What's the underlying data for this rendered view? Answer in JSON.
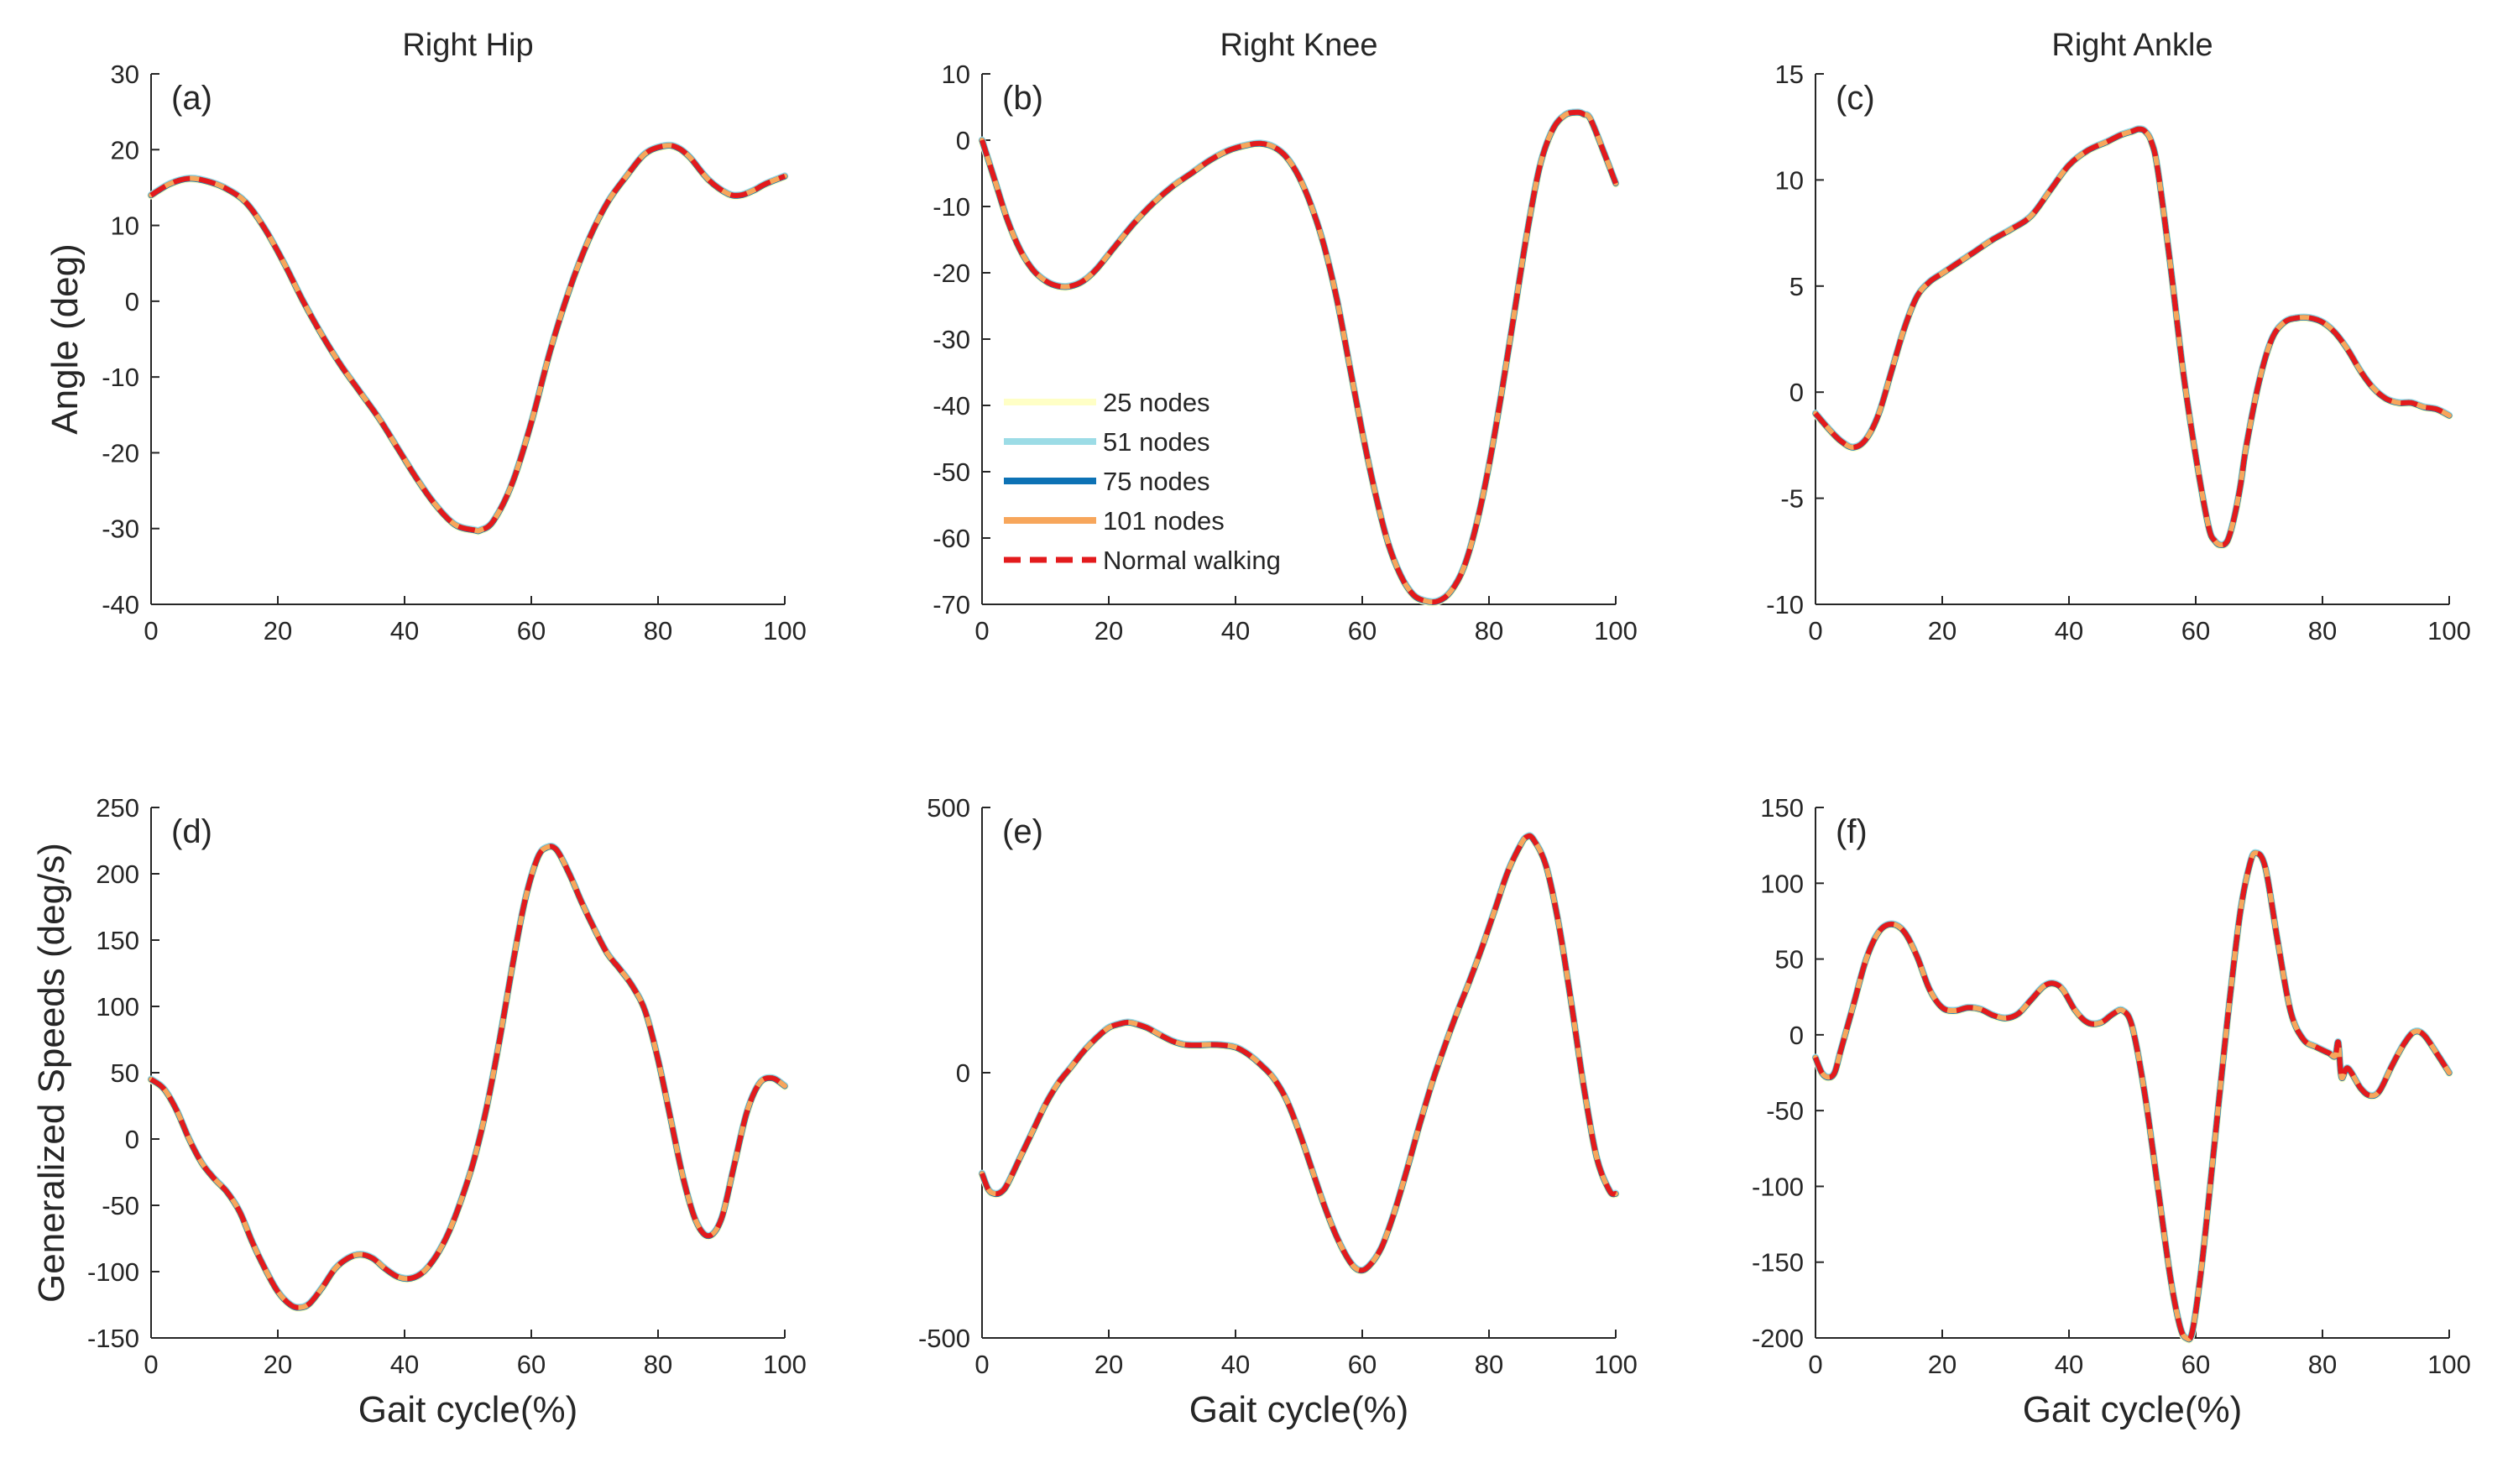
{
  "chart_data": [
    {
      "id": "a",
      "type": "line",
      "panel_label": "(a)",
      "title": "Right Hip",
      "xlabel": "",
      "ylabel": "Angle (deg)",
      "xlim": [
        0,
        100
      ],
      "ylim": [
        -40,
        30
      ],
      "xticks": [
        0,
        20,
        40,
        60,
        80,
        100
      ],
      "yticks": [
        -40,
        -30,
        -20,
        -10,
        0,
        10,
        20,
        30
      ],
      "curve": {
        "x": [
          0,
          3,
          6,
          9,
          12,
          15,
          18,
          21,
          24,
          27,
          30,
          33,
          36,
          39,
          42,
          45,
          48,
          51,
          52,
          54,
          57,
          60,
          63,
          66,
          69,
          72,
          75,
          78,
          81,
          83,
          85,
          88,
          91,
          93,
          95,
          97,
          100
        ],
        "y": [
          14,
          15.5,
          16.2,
          15.8,
          14.8,
          13,
          9.5,
          5,
          0,
          -4.5,
          -8.5,
          -12,
          -15.5,
          -19.5,
          -23.5,
          -27,
          -29.5,
          -30.2,
          -30.2,
          -29,
          -24,
          -16,
          -6.5,
          1.5,
          8,
          13,
          16.5,
          19.5,
          20.5,
          20.3,
          19,
          16,
          14.2,
          14,
          14.6,
          15.5,
          16.5
        ]
      },
      "series": [
        {
          "name": "25 nodes",
          "color": "#ffffc6"
        },
        {
          "name": "51 nodes",
          "color": "#9cdce6"
        },
        {
          "name": "75 nodes",
          "color": "#0d72b5"
        },
        {
          "name": "101 nodes",
          "color": "#f7a65b"
        },
        {
          "name": "Normal walking",
          "color": "#e31a1c"
        }
      ]
    },
    {
      "id": "b",
      "type": "line",
      "panel_label": "(b)",
      "title": "Right Knee",
      "xlabel": "",
      "ylabel": "",
      "xlim": [
        0,
        100
      ],
      "ylim": [
        -70,
        10
      ],
      "xticks": [
        0,
        20,
        40,
        60,
        80,
        100
      ],
      "yticks": [
        -70,
        -60,
        -50,
        -40,
        -30,
        -20,
        -10,
        0,
        10
      ],
      "curve": {
        "x": [
          0,
          2,
          4,
          6,
          8,
          10,
          12,
          14,
          16,
          18,
          21,
          24,
          27,
          30,
          33,
          36,
          39,
          42,
          44,
          46,
          48,
          50,
          52,
          54,
          56,
          58,
          60,
          62,
          64,
          66,
          68,
          70,
          72,
          74,
          76,
          78,
          80,
          82,
          84,
          86,
          88,
          90,
          92,
          94,
          95,
          96,
          98,
          100
        ],
        "y": [
          0,
          -6,
          -12,
          -16.5,
          -19.5,
          -21.2,
          -22,
          -22,
          -21.2,
          -19.5,
          -16,
          -12.5,
          -9.5,
          -7,
          -5,
          -3,
          -1.5,
          -0.7,
          -0.5,
          -1,
          -2.5,
          -5.5,
          -10,
          -16,
          -24,
          -34,
          -44,
          -53,
          -60.5,
          -65.5,
          -68.5,
          -69.5,
          -69.5,
          -68,
          -64.5,
          -58,
          -49,
          -38,
          -26,
          -14,
          -4,
          1.5,
          3.8,
          4.2,
          3.9,
          3.2,
          -1.5,
          -6.5
        ]
      },
      "series": [
        {
          "name": "25 nodes",
          "color": "#ffffc6"
        },
        {
          "name": "51 nodes",
          "color": "#9cdce6"
        },
        {
          "name": "75 nodes",
          "color": "#0d72b5"
        },
        {
          "name": "101 nodes",
          "color": "#f7a65b"
        },
        {
          "name": "Normal walking",
          "color": "#e31a1c"
        }
      ],
      "legend": {
        "entries": [
          "25 nodes",
          "51 nodes",
          "75 nodes",
          "101 nodes",
          "Normal walking"
        ],
        "location": "left"
      }
    },
    {
      "id": "c",
      "type": "line",
      "panel_label": "(c)",
      "title": "Right Ankle",
      "xlabel": "",
      "ylabel": "",
      "xlim": [
        0,
        100
      ],
      "ylim": [
        -10,
        15
      ],
      "xticks": [
        0,
        20,
        40,
        60,
        80,
        100
      ],
      "yticks": [
        -10,
        -5,
        0,
        5,
        10,
        15
      ],
      "curve": {
        "x": [
          0,
          2,
          4,
          6,
          8,
          10,
          12,
          14,
          16,
          18,
          20,
          22,
          25,
          28,
          31,
          34,
          37,
          40,
          43,
          46,
          48,
          50,
          51,
          52,
          53,
          54,
          56,
          58,
          60,
          62,
          63,
          64,
          65,
          66,
          67,
          68,
          70,
          72,
          74,
          76,
          78,
          80,
          82,
          84,
          86,
          88,
          90,
          92,
          94,
          96,
          98,
          100
        ],
        "y": [
          -1,
          -1.7,
          -2.3,
          -2.6,
          -2.2,
          -1,
          1,
          3,
          4.5,
          5.2,
          5.6,
          6.0,
          6.6,
          7.2,
          7.7,
          8.3,
          9.5,
          10.7,
          11.4,
          11.8,
          12.1,
          12.3,
          12.4,
          12.3,
          11.8,
          10.5,
          6,
          1,
          -3,
          -6.3,
          -7,
          -7.2,
          -7,
          -6,
          -4.5,
          -2.5,
          0.5,
          2.5,
          3.3,
          3.5,
          3.5,
          3.3,
          2.8,
          2,
          1,
          0.2,
          -0.3,
          -0.5,
          -0.5,
          -0.7,
          -0.8,
          -1.1
        ]
      },
      "series": [
        {
          "name": "25 nodes",
          "color": "#ffffc6"
        },
        {
          "name": "51 nodes",
          "color": "#9cdce6"
        },
        {
          "name": "75 nodes",
          "color": "#0d72b5"
        },
        {
          "name": "101 nodes",
          "color": "#f7a65b"
        },
        {
          "name": "Normal walking",
          "color": "#e31a1c"
        }
      ]
    },
    {
      "id": "d",
      "type": "line",
      "panel_label": "(d)",
      "title": "",
      "xlabel": "Gait cycle(%)",
      "ylabel": "Generalized Speeds (deg/s)",
      "xlim": [
        0,
        100
      ],
      "ylim": [
        -150,
        250
      ],
      "xticks": [
        0,
        20,
        40,
        60,
        80,
        100
      ],
      "yticks": [
        -150,
        -100,
        -50,
        0,
        50,
        100,
        150,
        200,
        250
      ],
      "curve": {
        "x": [
          0,
          2,
          4,
          6,
          8,
          10,
          12,
          14,
          16,
          18,
          20,
          22,
          23.5,
          25,
          27,
          29,
          31,
          33,
          35,
          37,
          39,
          41,
          43,
          45,
          47,
          49,
          51,
          53,
          55,
          57,
          59,
          61,
          62.5,
          64,
          66,
          68,
          70,
          72,
          74,
          76,
          78,
          80,
          82,
          84,
          86,
          88,
          90,
          92,
          94,
          96,
          98,
          100
        ],
        "y": [
          45,
          38,
          22,
          0,
          -18,
          -30,
          -40,
          -55,
          -78,
          -98,
          -115,
          -125,
          -127,
          -124,
          -112,
          -98,
          -90,
          -87,
          -90,
          -98,
          -104,
          -105,
          -100,
          -88,
          -70,
          -45,
          -15,
          25,
          75,
          130,
          180,
          212,
          220,
          218,
          200,
          178,
          158,
          140,
          128,
          115,
          96,
          60,
          15,
          -30,
          -62,
          -73,
          -60,
          -20,
          20,
          42,
          46,
          40
        ]
      },
      "series": [
        {
          "name": "25 nodes",
          "color": "#ffffc6"
        },
        {
          "name": "51 nodes",
          "color": "#9cdce6"
        },
        {
          "name": "75 nodes",
          "color": "#0d72b5"
        },
        {
          "name": "101 nodes",
          "color": "#f7a65b"
        },
        {
          "name": "Normal walking",
          "color": "#e31a1c"
        }
      ]
    },
    {
      "id": "e",
      "type": "line",
      "panel_label": "(e)",
      "title": "",
      "xlabel": "Gait cycle(%)",
      "ylabel": "",
      "xlim": [
        0,
        100
      ],
      "ylim": [
        -500,
        500
      ],
      "xticks": [
        0,
        20,
        40,
        60,
        80,
        100
      ],
      "yticks": [
        -500,
        0,
        500
      ],
      "curve": {
        "x": [
          0,
          1,
          2,
          3,
          4,
          6,
          8,
          10,
          12,
          14,
          16,
          18,
          20,
          22,
          23,
          24,
          26,
          28,
          30,
          32,
          34,
          36,
          38,
          40,
          42,
          44,
          46,
          48,
          50,
          52,
          54,
          56,
          58,
          59.5,
          61,
          63,
          65,
          67,
          69,
          71,
          73,
          75,
          77,
          79,
          81,
          83,
          85,
          86,
          87,
          89,
          91,
          93,
          95,
          97,
          99,
          100
        ],
        "y": [
          -190,
          -220,
          -228,
          -225,
          -210,
          -160,
          -110,
          -60,
          -20,
          10,
          40,
          65,
          85,
          93,
          95,
          93,
          85,
          72,
          60,
          53,
          52,
          53,
          52,
          48,
          35,
          15,
          -10,
          -50,
          -110,
          -180,
          -250,
          -310,
          -355,
          -372,
          -365,
          -330,
          -265,
          -185,
          -100,
          -20,
          50,
          115,
          175,
          240,
          310,
          380,
          430,
          445,
          440,
          390,
          280,
          130,
          -30,
          -160,
          -222,
          -228
        ]
      },
      "series": [
        {
          "name": "25 nodes",
          "color": "#ffffc6"
        },
        {
          "name": "51 nodes",
          "color": "#9cdce6"
        },
        {
          "name": "75 nodes",
          "color": "#0d72b5"
        },
        {
          "name": "101 nodes",
          "color": "#f7a65b"
        },
        {
          "name": "Normal walking",
          "color": "#e31a1c"
        }
      ]
    },
    {
      "id": "f",
      "type": "line",
      "panel_label": "(f)",
      "title": "",
      "xlabel": "Gait cycle(%)",
      "ylabel": "",
      "xlim": [
        0,
        100
      ],
      "ylim": [
        -200,
        150
      ],
      "xticks": [
        0,
        20,
        40,
        60,
        80,
        100
      ],
      "yticks": [
        -200,
        -150,
        -100,
        -50,
        0,
        50,
        100,
        150
      ],
      "curve": {
        "x": [
          0,
          1,
          2,
          3,
          4,
          6,
          8,
          10,
          12,
          14,
          16,
          18,
          20,
          22,
          24,
          26,
          28,
          30,
          32,
          34,
          36,
          37.5,
          39,
          41,
          43,
          45,
          47,
          48.5,
          50,
          52,
          54,
          56,
          57.5,
          58.5,
          59.5,
          61,
          63,
          65,
          67,
          68.5,
          69.5,
          71,
          73,
          75,
          77,
          79,
          81,
          82,
          82.5,
          83,
          84,
          86,
          87.5,
          89,
          91,
          93,
          94.5,
          96,
          98,
          100
        ],
        "y": [
          -15,
          -25,
          -28,
          -25,
          -10,
          20,
          50,
          68,
          73,
          68,
          52,
          30,
          18,
          16,
          18,
          17,
          13,
          11,
          14,
          23,
          32,
          34,
          30,
          16,
          8,
          8,
          14,
          16,
          5,
          -40,
          -100,
          -160,
          -192,
          -200,
          -195,
          -150,
          -70,
          10,
          80,
          112,
          120,
          110,
          60,
          15,
          -3,
          -8,
          -12,
          -14,
          -5,
          -28,
          -22,
          -35,
          -40,
          -37,
          -20,
          -5,
          2,
          0,
          -12,
          -25
        ]
      },
      "series": [
        {
          "name": "25 nodes",
          "color": "#ffffc6"
        },
        {
          "name": "51 nodes",
          "color": "#9cdce6"
        },
        {
          "name": "75 nodes",
          "color": "#0d72b5"
        },
        {
          "name": "101 nodes",
          "color": "#f7a65b"
        },
        {
          "name": "Normal walking",
          "color": "#e31a1c"
        }
      ]
    }
  ]
}
